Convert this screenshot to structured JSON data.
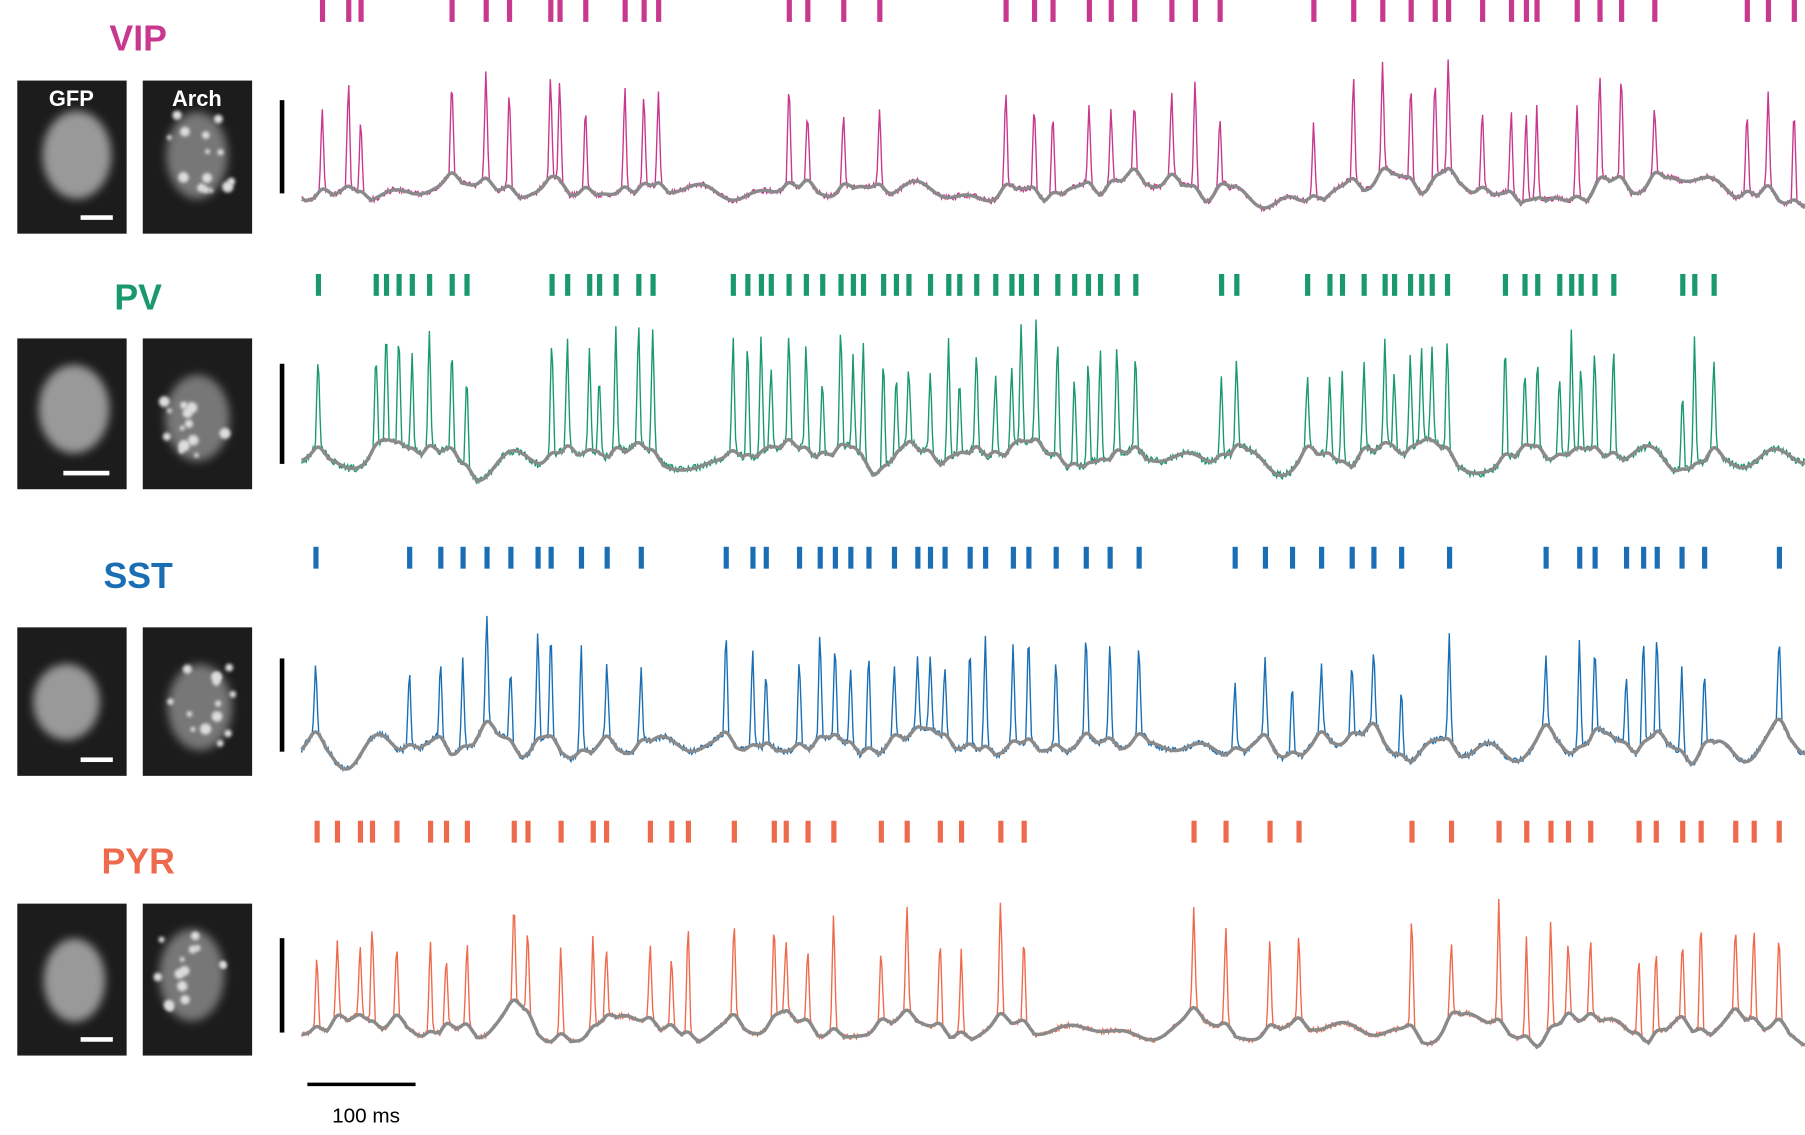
{
  "panels": [
    {
      "label": "VIP",
      "image_labels": [
        "GFP",
        "Arch"
      ]
    },
    {
      "label": "PV"
    },
    {
      "label": "SST"
    },
    {
      "label": "PYR"
    }
  ],
  "scale_bar": {
    "label": "100 ms"
  }
}
